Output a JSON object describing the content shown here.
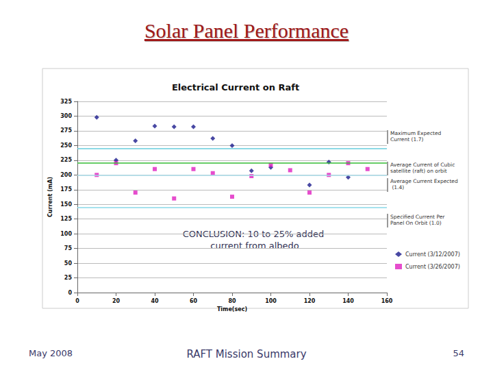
{
  "slide": {
    "title": "Solar Panel Performance",
    "footer": {
      "date": "May 2008",
      "center": "RAFT Mission Summary",
      "page": 54
    }
  },
  "chart_data": {
    "type": "scatter",
    "title": "Electrical Current on Raft",
    "x_label": "Time(sec)",
    "y_label": "Current (mA)",
    "xlim": [
      0,
      160
    ],
    "xticks": [
      0,
      20,
      40,
      60,
      80,
      100,
      120,
      140,
      160
    ],
    "ylim": [
      0,
      325
    ],
    "yticks": [
      0,
      25,
      50,
      75,
      100,
      125,
      150,
      175,
      200,
      225,
      250,
      275,
      300,
      325
    ],
    "grid": true,
    "legend": "right",
    "series": [
      {
        "name": "Current (3/12/2007)",
        "color": "#1a1a8c",
        "marker": "diamond",
        "x": [
          10,
          20,
          30,
          40,
          50,
          60,
          70,
          80,
          90,
          100,
          120,
          130,
          140
        ],
        "values": [
          298,
          225,
          258,
          283,
          282,
          282,
          262,
          250,
          207,
          213,
          183,
          222,
          196
        ]
      },
      {
        "name": "Current (3/26/2007)",
        "color": "#e020c0",
        "marker": "square",
        "x": [
          10,
          20,
          30,
          40,
          50,
          60,
          70,
          80,
          90,
          100,
          110,
          120,
          130,
          140,
          150
        ],
        "values": [
          200,
          220,
          170,
          210,
          160,
          210,
          203,
          163,
          198,
          217,
          208,
          170,
          200,
          220,
          210
        ]
      }
    ],
    "reference_lines": [
      {
        "value": 245,
        "label": "Maximum Expected Current (1.7)",
        "color": "#66ccdd"
      },
      {
        "value": 220,
        "label": "Average Current of Cubic satellite (raft) on orbit",
        "color": "#33bb33"
      },
      {
        "value": 200,
        "label": "Average Current Expected (1.4)",
        "color": "#aadde8"
      },
      {
        "value": 145,
        "label": "Specified Current Per Panel On Orbit (1.0)",
        "color": "#88d8e8"
      }
    ],
    "annotations": [
      "CONCLUSION: 10 to 25% added current from albedo"
    ]
  }
}
